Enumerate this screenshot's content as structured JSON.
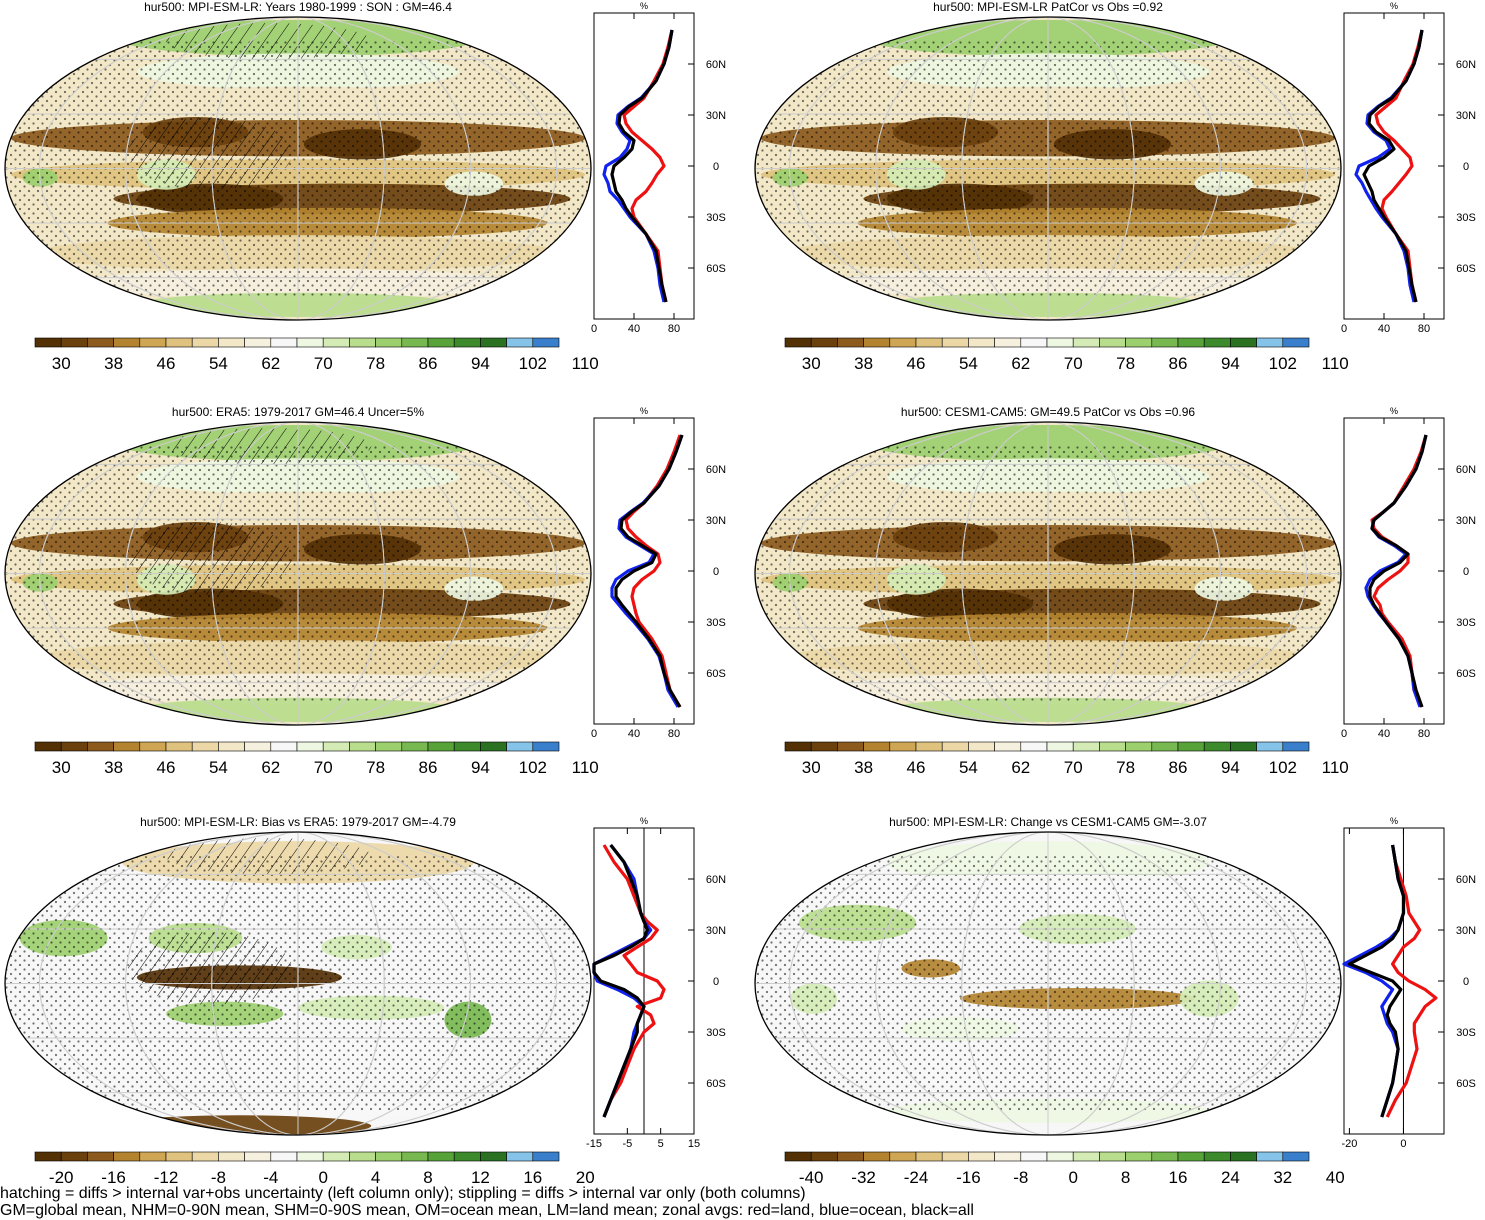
{
  "colors": {
    "brown_to_green": [
      "#543005",
      "#6a400d",
      "#8c5a1c",
      "#b3832f",
      "#cfa653",
      "#dfc27d",
      "#ecd8a6",
      "#f2e7c6",
      "#f6f0de",
      "#f7f7f7",
      "#eef7e2",
      "#d4ebb5",
      "#b8dd8c",
      "#9ccf6e",
      "#78b850",
      "#58a23a",
      "#3d8a2c",
      "#2a7222",
      "#85c4e8",
      "#3a7fcc"
    ],
    "land_red": "#ee1111",
    "ocean_blue": "#1122ee",
    "all_black": "#000000"
  },
  "footer": {
    "line1": "hatching = diffs > internal var+obs uncertainty (left column only); stippling = diffs > internal var only (both columns)",
    "line2": "GM=global mean, NHM=0-90N mean, SHM=0-90S mean, OM=ocean mean, LM=land mean; zonal avgs: red=land, blue=ocean, black=all"
  },
  "chart_data": [
    {
      "type": "heatmap",
      "title": "hur500: MPI-ESM-LR: Years 1980-1999 : SON : GM=46.4",
      "colorbar": [
        "30",
        "38",
        "46",
        "54",
        "62",
        "70",
        "78",
        "86",
        "94",
        "102",
        "110"
      ],
      "zonal": {
        "unit": "%",
        "xticks": [
          "0",
          "40",
          "80"
        ],
        "xlim": [
          0,
          100
        ],
        "yticks": [
          "60N",
          "30N",
          "0",
          "30S",
          "60S"
        ],
        "lat": [
          80,
          70,
          60,
          50,
          40,
          35,
          30,
          25,
          20,
          15,
          10,
          5,
          0,
          -5,
          -10,
          -15,
          -20,
          -25,
          -30,
          -40,
          -50,
          -60,
          -70,
          -80
        ],
        "all": [
          78,
          75,
          70,
          62,
          48,
          35,
          26,
          25,
          30,
          40,
          38,
          30,
          20,
          18,
          20,
          22,
          28,
          32,
          38,
          52,
          62,
          65,
          68,
          72
        ],
        "land": [
          78,
          74,
          69,
          60,
          50,
          40,
          30,
          32,
          38,
          48,
          58,
          66,
          70,
          63,
          58,
          52,
          42,
          38,
          40,
          52,
          64,
          66,
          68,
          72
        ],
        "ocean": [
          78,
          75,
          70,
          62,
          47,
          34,
          24,
          23,
          28,
          36,
          33,
          26,
          12,
          10,
          14,
          16,
          24,
          30,
          36,
          52,
          60,
          64,
          66,
          70
        ]
      }
    },
    {
      "type": "heatmap",
      "title": "hur500: MPI-ESM-LR PatCor vs Obs =0.92",
      "colorbar": [
        "30",
        "38",
        "46",
        "54",
        "62",
        "70",
        "78",
        "86",
        "94",
        "102",
        "110"
      ],
      "zonal": {
        "unit": "%",
        "xticks": [
          "0",
          "40",
          "80"
        ],
        "xlim": [
          0,
          100
        ],
        "yticks": [
          "60N",
          "30N",
          "0",
          "30S",
          "60S"
        ],
        "lat": [
          80,
          70,
          60,
          50,
          40,
          35,
          30,
          25,
          20,
          15,
          10,
          5,
          0,
          -5,
          -10,
          -15,
          -20,
          -25,
          -30,
          -40,
          -50,
          -60,
          -70,
          -80
        ],
        "all": [
          78,
          75,
          70,
          62,
          48,
          35,
          26,
          25,
          32,
          45,
          50,
          40,
          25,
          20,
          24,
          28,
          30,
          35,
          40,
          52,
          62,
          65,
          68,
          72
        ],
        "land": [
          78,
          74,
          69,
          60,
          52,
          42,
          32,
          34,
          40,
          50,
          58,
          66,
          68,
          62,
          55,
          48,
          40,
          38,
          42,
          52,
          64,
          66,
          68,
          72
        ],
        "ocean": [
          78,
          75,
          70,
          62,
          47,
          34,
          24,
          23,
          30,
          42,
          46,
          34,
          15,
          12,
          18,
          22,
          27,
          32,
          38,
          52,
          60,
          64,
          66,
          70
        ]
      }
    },
    {
      "type": "heatmap",
      "title": "hur500: ERA5: 1979-2017 GM=46.4 Uncer=5%",
      "colorbar": [
        "30",
        "38",
        "46",
        "54",
        "62",
        "70",
        "78",
        "86",
        "94",
        "102",
        "110"
      ],
      "zonal": {
        "unit": "%",
        "xticks": [
          "0",
          "40",
          "80"
        ],
        "xlim": [
          0,
          100
        ],
        "yticks": [
          "60N",
          "30N",
          "0",
          "30S",
          "60S"
        ],
        "lat": [
          80,
          70,
          60,
          50,
          40,
          35,
          30,
          25,
          20,
          15,
          10,
          5,
          0,
          -5,
          -10,
          -15,
          -20,
          -25,
          -30,
          -40,
          -50,
          -60,
          -70,
          -80
        ],
        "all": [
          88,
          82,
          75,
          65,
          50,
          38,
          28,
          27,
          34,
          48,
          62,
          58,
          40,
          28,
          22,
          22,
          28,
          35,
          42,
          55,
          66,
          70,
          76,
          86
        ],
        "land": [
          86,
          80,
          73,
          63,
          50,
          40,
          32,
          34,
          42,
          52,
          64,
          66,
          60,
          48,
          40,
          38,
          40,
          42,
          45,
          58,
          68,
          72,
          76,
          86
        ],
        "ocean": [
          88,
          82,
          75,
          65,
          49,
          37,
          26,
          25,
          32,
          46,
          60,
          55,
          34,
          22,
          18,
          18,
          25,
          32,
          40,
          54,
          65,
          70,
          74,
          84
        ]
      }
    },
    {
      "type": "heatmap",
      "title": "hur500: CESM1-CAM5: GM=49.5 PatCor vs Obs =0.96",
      "colorbar": [
        "30",
        "38",
        "46",
        "54",
        "62",
        "70",
        "78",
        "86",
        "94",
        "102",
        "110"
      ],
      "zonal": {
        "unit": "%",
        "xticks": [
          "0",
          "40",
          "80"
        ],
        "xlim": [
          0,
          100
        ],
        "yticks": [
          "60N",
          "30N",
          "0",
          "30S",
          "60S"
        ],
        "lat": [
          80,
          70,
          60,
          50,
          40,
          35,
          30,
          25,
          20,
          15,
          10,
          5,
          0,
          -5,
          -10,
          -15,
          -20,
          -25,
          -30,
          -40,
          -50,
          -60,
          -70,
          -80
        ],
        "all": [
          82,
          78,
          72,
          62,
          50,
          40,
          30,
          28,
          36,
          52,
          64,
          56,
          40,
          30,
          26,
          26,
          30,
          36,
          42,
          55,
          64,
          68,
          72,
          78
        ],
        "land": [
          82,
          77,
          70,
          60,
          50,
          40,
          28,
          30,
          38,
          52,
          64,
          64,
          56,
          44,
          34,
          30,
          36,
          38,
          44,
          58,
          66,
          68,
          70,
          78
        ],
        "ocean": [
          82,
          78,
          72,
          62,
          50,
          40,
          30,
          28,
          35,
          50,
          62,
          54,
          36,
          26,
          22,
          24,
          29,
          35,
          42,
          55,
          64,
          68,
          70,
          76
        ]
      }
    },
    {
      "type": "heatmap",
      "title": "hur500: MPI-ESM-LR: Bias vs ERA5: 1979-2017  GM=-4.79",
      "colorbar": [
        "-20",
        "-16",
        "-12",
        "-8",
        "-4",
        "0",
        "4",
        "8",
        "12",
        "16",
        "20"
      ],
      "zonal": {
        "unit": "%",
        "xticks": [
          "-15",
          "-5",
          "5",
          "15"
        ],
        "xlim": [
          -15,
          15
        ],
        "yticks": [
          "60N",
          "30N",
          "0",
          "30S",
          "60S"
        ],
        "lat": [
          80,
          70,
          60,
          50,
          40,
          35,
          30,
          25,
          20,
          15,
          10,
          5,
          0,
          -5,
          -10,
          -15,
          -20,
          -25,
          -30,
          -40,
          -50,
          -60,
          -70,
          -80
        ],
        "all": [
          -10,
          -6,
          -4,
          -2,
          -1,
          0,
          1,
          0,
          -4,
          -9,
          -15,
          -15,
          -13,
          -6,
          -2,
          0,
          -1,
          -2,
          -2,
          -4,
          -6,
          -8,
          -10,
          -12
        ],
        "land": [
          -12,
          -9,
          -5,
          -3,
          -1,
          1,
          4,
          2,
          -2,
          -6,
          -4,
          -2,
          4,
          6,
          5,
          -2,
          2,
          3,
          0,
          -3,
          -5,
          -7,
          -10,
          -12
        ],
        "ocean": [
          -10,
          -6,
          -3,
          -2,
          -1,
          0,
          2,
          0,
          -5,
          -10,
          -15,
          -15,
          -14,
          -8,
          -3,
          0,
          -1,
          -2,
          -3,
          -4,
          -6,
          -8,
          -10,
          -12
        ]
      }
    },
    {
      "type": "heatmap",
      "title": "hur500: MPI-ESM-LR: Change vs CESM1-CAM5 GM=-3.07",
      "colorbar": [
        "-40",
        "-32",
        "-24",
        "-16",
        "-8",
        "0",
        "8",
        "16",
        "24",
        "32",
        "40"
      ],
      "zonal": {
        "unit": "%",
        "xticks": [
          "-20",
          "0"
        ],
        "xlim": [
          -22,
          15
        ],
        "yticks": [
          "60N",
          "30N",
          "0",
          "30S",
          "60S"
        ],
        "lat": [
          80,
          70,
          60,
          50,
          40,
          35,
          30,
          25,
          20,
          15,
          10,
          5,
          0,
          -5,
          -10,
          -15,
          -20,
          -25,
          -30,
          -40,
          -50,
          -60,
          -70,
          -80
        ],
        "all": [
          -4,
          -3,
          -2,
          0,
          0,
          -1,
          -2,
          -4,
          -8,
          -14,
          -20,
          -12,
          -4,
          -1,
          -3,
          -5,
          -6,
          -5,
          -3,
          -2,
          -3,
          -4,
          -6,
          -8
        ],
        "land": [
          -4,
          -3,
          -1,
          1,
          2,
          4,
          6,
          4,
          0,
          -2,
          -4,
          -2,
          2,
          8,
          12,
          8,
          6,
          4,
          4,
          5,
          3,
          1,
          -3,
          -6
        ],
        "ocean": [
          -4,
          -3,
          -2,
          0,
          0,
          -1,
          -2,
          -5,
          -10,
          -16,
          -22,
          -14,
          -8,
          -4,
          -6,
          -8,
          -7,
          -6,
          -4,
          -2,
          -3,
          -4,
          -6,
          -8
        ]
      }
    }
  ]
}
